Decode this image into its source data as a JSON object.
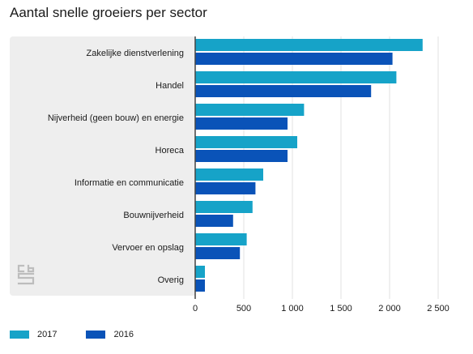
{
  "title": "Aantal snelle groeiers per sector",
  "colors": {
    "series_2017": "#16a3c8",
    "series_2016": "#0a53b8",
    "panel": "#eeeeee",
    "grid": "#e2e2e2",
    "axis": "#444444"
  },
  "legend": [
    {
      "label": "2017",
      "color": "#16a3c8"
    },
    {
      "label": "2016",
      "color": "#0a53b8"
    }
  ],
  "logo_icon": "cbs-logo-icon",
  "chart_data": {
    "type": "bar",
    "orientation": "horizontal",
    "title": "Aantal snelle groeiers per sector",
    "categories": [
      "Zakelijke dienstverlening",
      "Handel",
      "Nijverheid (geen bouw) en energie",
      "Horeca",
      "Informatie en communicatie",
      "Bouwnijverheid",
      "Vervoer en opslag",
      "Overig"
    ],
    "series": [
      {
        "name": "2017",
        "color": "#16a3c8",
        "values": [
          2340,
          2070,
          1120,
          1050,
          700,
          590,
          530,
          100
        ]
      },
      {
        "name": "2016",
        "color": "#0a53b8",
        "values": [
          2030,
          1810,
          950,
          950,
          620,
          390,
          460,
          100
        ]
      }
    ],
    "xlim": [
      0,
      2500
    ],
    "xticks": [
      0,
      500,
      1000,
      1500,
      2000,
      2500
    ],
    "xtick_labels": [
      "0",
      "500",
      "1 000",
      "1 500",
      "2 000",
      "2 500"
    ],
    "grid": true,
    "legend_position": "bottom-left"
  }
}
